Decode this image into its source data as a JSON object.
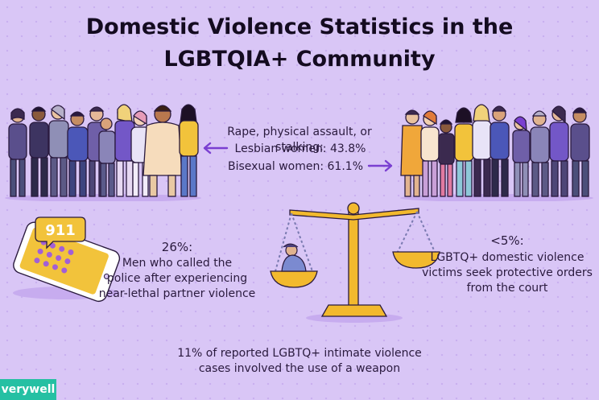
{
  "title": {
    "line1": "Domestic Violence Statistics in the",
    "line2": "LGBTQIA+ Community"
  },
  "center_stat": {
    "heading": "Rape, physical assault, or stalking:",
    "lesbian": "Lesbian women: 43.8%",
    "bisexual": "Bisexual women: 61.1%"
  },
  "phone_stat": {
    "value": "26%:",
    "line1": "Men who called the",
    "line2": "police after experiencing",
    "line3": "near-lethal partner violence",
    "badge": "911"
  },
  "court_stat": {
    "value": "<5%:",
    "line1": "LGBTQ+ domestic violence",
    "line2": "victims seek protective orders",
    "line3": "from the court"
  },
  "weapon_stat": {
    "line1": "11% of reported LGBTQ+ intimate violence",
    "line2": "cases involved the use of a weapon"
  },
  "brand": {
    "logo": "verywell"
  },
  "colors": {
    "background": "#d9c6f6",
    "accent_purple": "#7a3fd1",
    "scale_gold": "#f2b92e",
    "brand_teal": "#25c0a3"
  },
  "icons": [
    "left-arrow-icon",
    "right-arrow-icon",
    "phone-icon",
    "scales-icon",
    "crowd-illustration"
  ]
}
